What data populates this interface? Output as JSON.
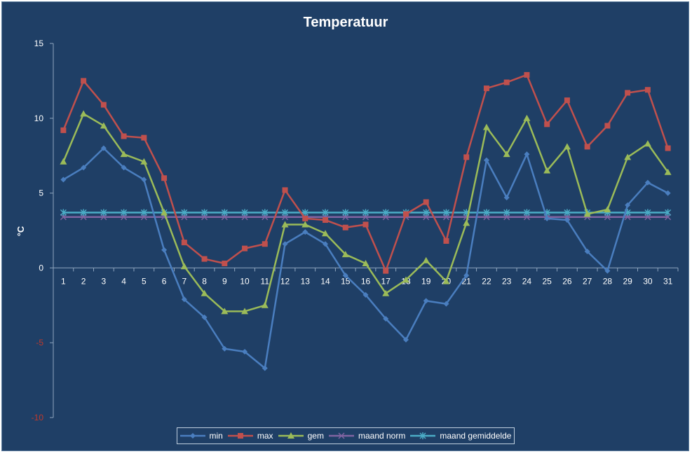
{
  "chart_data": {
    "type": "line",
    "title": "Temperatuur",
    "xlabel": "",
    "ylabel": "°C",
    "ylim": [
      -10,
      15
    ],
    "yticks": [
      15,
      10,
      5,
      0,
      -5,
      -10
    ],
    "x": [
      1,
      2,
      3,
      4,
      5,
      6,
      7,
      8,
      9,
      10,
      11,
      12,
      13,
      14,
      15,
      16,
      17,
      18,
      19,
      20,
      21,
      22,
      23,
      24,
      25,
      26,
      27,
      28,
      29,
      30,
      31
    ],
    "grid": false,
    "legend_position": "bottom",
    "series": [
      {
        "name": "min",
        "color": "#4a7ebf",
        "marker": "diamond",
        "values": [
          5.9,
          6.7,
          8.0,
          6.7,
          5.9,
          1.2,
          -2.1,
          -3.3,
          -5.4,
          -5.6,
          -6.7,
          1.6,
          2.4,
          1.6,
          -0.5,
          -1.8,
          -3.4,
          -4.8,
          -2.2,
          -2.4,
          -0.5,
          7.2,
          4.7,
          7.6,
          3.3,
          3.2,
          1.1,
          -0.2,
          4.2,
          5.7,
          5.0
        ]
      },
      {
        "name": "max",
        "color": "#c0504d",
        "marker": "square",
        "values": [
          9.2,
          12.5,
          10.9,
          8.8,
          8.7,
          6.0,
          1.7,
          0.6,
          0.3,
          1.3,
          1.6,
          5.2,
          3.3,
          3.2,
          2.7,
          2.9,
          -0.2,
          3.6,
          4.4,
          1.8,
          7.4,
          12.0,
          12.4,
          12.9,
          9.6,
          11.2,
          8.1,
          9.5,
          11.7,
          11.9,
          8.0
        ]
      },
      {
        "name": "gem",
        "color": "#9bbb59",
        "marker": "triangle",
        "values": [
          7.1,
          10.3,
          9.5,
          7.6,
          7.1,
          3.7,
          0.1,
          -1.7,
          -2.9,
          -2.9,
          -2.5,
          2.9,
          2.9,
          2.3,
          0.9,
          0.3,
          -1.7,
          -0.8,
          0.5,
          -0.9,
          3.0,
          9.4,
          7.6,
          10.0,
          6.5,
          8.1,
          3.6,
          3.9,
          7.4,
          8.3,
          6.4
        ]
      },
      {
        "name": "maand norm",
        "color": "#8064a2",
        "marker": "x",
        "values": [
          3.4,
          3.4,
          3.4,
          3.4,
          3.4,
          3.4,
          3.4,
          3.4,
          3.4,
          3.4,
          3.4,
          3.4,
          3.4,
          3.4,
          3.4,
          3.4,
          3.4,
          3.4,
          3.4,
          3.4,
          3.4,
          3.4,
          3.4,
          3.4,
          3.4,
          3.4,
          3.4,
          3.4,
          3.4,
          3.4,
          3.4
        ]
      },
      {
        "name": "maand gemiddelde",
        "color": "#4bacc6",
        "marker": "star",
        "values": [
          3.7,
          3.7,
          3.7,
          3.7,
          3.7,
          3.7,
          3.7,
          3.7,
          3.7,
          3.7,
          3.7,
          3.7,
          3.7,
          3.7,
          3.7,
          3.7,
          3.7,
          3.7,
          3.7,
          3.7,
          3.7,
          3.7,
          3.7,
          3.7,
          3.7,
          3.7,
          3.7,
          3.7,
          3.7,
          3.7,
          3.7
        ]
      }
    ]
  }
}
